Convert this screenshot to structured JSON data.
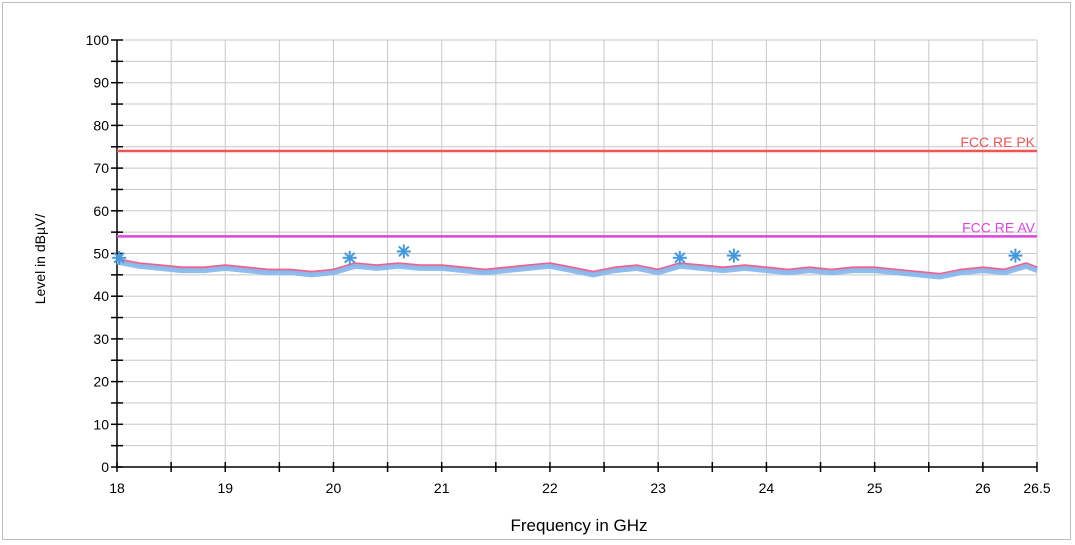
{
  "chart_data": {
    "type": "line",
    "xlabel": "Frequency in GHz",
    "ylabel": "Level in dBµV/",
    "xlim": [
      18,
      26.5
    ],
    "ylim": [
      0,
      100
    ],
    "x_ticks": [
      "18",
      "19",
      "20",
      "21",
      "22",
      "23",
      "24",
      "25",
      "26",
      "26.5"
    ],
    "x_tick_values": [
      18,
      19,
      20,
      21,
      22,
      23,
      24,
      25,
      26,
      26.5
    ],
    "y_ticks": [
      "0",
      "10",
      "20",
      "30",
      "40",
      "50",
      "60",
      "70",
      "80",
      "90",
      "100"
    ],
    "y_tick_values": [
      0,
      10,
      20,
      30,
      40,
      50,
      60,
      70,
      80,
      90,
      100
    ],
    "grid": true,
    "limit_lines": [
      {
        "name": "FCC RE PK",
        "value": 74,
        "color": "#ee5555"
      },
      {
        "name": "FCC RE AV",
        "value": 54,
        "color": "#dd44dd"
      }
    ],
    "series": [
      {
        "color": "#ee4477",
        "x": [
          18.0,
          18.2,
          18.4,
          18.6,
          18.8,
          19.0,
          19.2,
          19.4,
          19.6,
          19.8,
          20.0,
          20.2,
          20.4,
          20.6,
          20.8,
          21.0,
          21.2,
          21.4,
          21.6,
          21.8,
          22.0,
          22.2,
          22.4,
          22.6,
          22.8,
          23.0,
          23.2,
          23.4,
          23.6,
          23.8,
          24.0,
          24.2,
          24.4,
          24.6,
          24.8,
          25.0,
          25.2,
          25.4,
          25.6,
          25.8,
          26.0,
          26.2,
          26.4,
          26.5
        ],
        "values": [
          48.5,
          47.5,
          47.0,
          46.5,
          46.5,
          47.0,
          46.5,
          46.0,
          46.0,
          45.5,
          46.0,
          47.5,
          47.0,
          47.5,
          47.0,
          47.0,
          46.5,
          46.0,
          46.5,
          47.0,
          47.5,
          46.5,
          45.5,
          46.5,
          47.0,
          46.0,
          47.5,
          47.0,
          46.5,
          47.0,
          46.5,
          46.0,
          46.5,
          46.0,
          46.5,
          46.5,
          46.0,
          45.5,
          45.0,
          46.0,
          46.5,
          46.0,
          47.5,
          46.5
        ]
      },
      {
        "color": "#88bbee",
        "x": [
          18.0,
          18.2,
          18.4,
          18.6,
          18.8,
          19.0,
          19.2,
          19.4,
          19.6,
          19.8,
          20.0,
          20.2,
          20.4,
          20.6,
          20.8,
          21.0,
          21.2,
          21.4,
          21.6,
          21.8,
          22.0,
          22.2,
          22.4,
          22.6,
          22.8,
          23.0,
          23.2,
          23.4,
          23.6,
          23.8,
          24.0,
          24.2,
          24.4,
          24.6,
          24.8,
          25.0,
          25.2,
          25.4,
          25.6,
          25.8,
          26.0,
          26.2,
          26.4,
          26.5
        ],
        "values": [
          48.0,
          47.0,
          46.5,
          46.0,
          46.0,
          46.5,
          46.0,
          45.5,
          45.5,
          45.0,
          45.5,
          47.0,
          46.5,
          47.0,
          46.5,
          46.5,
          46.0,
          45.5,
          46.0,
          46.5,
          47.0,
          46.0,
          45.0,
          46.0,
          46.5,
          45.5,
          47.0,
          46.5,
          46.0,
          46.5,
          46.0,
          45.5,
          46.0,
          45.5,
          46.0,
          46.0,
          45.5,
          45.0,
          44.5,
          45.5,
          46.0,
          45.5,
          47.0,
          46.0
        ]
      }
    ],
    "markers": {
      "color": "#4499dd",
      "x": [
        18.02,
        20.15,
        20.65,
        23.2,
        23.7,
        26.3
      ],
      "values": [
        49,
        49,
        50.5,
        49,
        49.5,
        49.5
      ]
    }
  }
}
